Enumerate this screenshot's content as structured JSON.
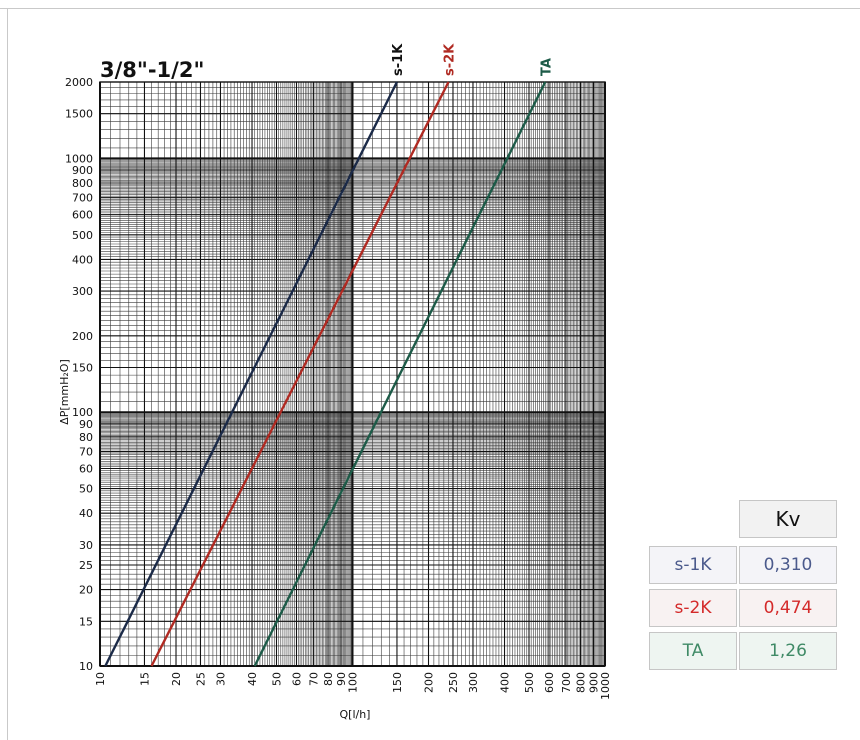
{
  "chart_data": {
    "type": "line",
    "title": "3/8\"-1/2\"",
    "xlabel": "Q[l/h]",
    "ylabel": "ΔP[mmH₂O]",
    "x_scale": "log",
    "y_scale": "log",
    "xlim": [
      10,
      1000
    ],
    "ylim": [
      10,
      2000
    ],
    "x_ticks": [
      10,
      15,
      20,
      25,
      30,
      40,
      50,
      60,
      70,
      80,
      90,
      100,
      150,
      200,
      250,
      300,
      400,
      500,
      600,
      700,
      800,
      900,
      1000
    ],
    "y_ticks": [
      10,
      15,
      20,
      25,
      30,
      40,
      50,
      60,
      70,
      80,
      90,
      100,
      150,
      200,
      300,
      400,
      500,
      600,
      700,
      800,
      900,
      1000,
      1500,
      2000
    ],
    "grid": true,
    "series": [
      {
        "name": "s-1K",
        "color": "#1b2a48",
        "x": [
          10.5,
          150
        ],
        "y": [
          10,
          2000
        ]
      },
      {
        "name": "s-2K",
        "color": "#b02a22",
        "x": [
          16,
          240
        ],
        "y": [
          10,
          2000
        ]
      },
      {
        "name": "TA",
        "color": "#1d5b48",
        "x": [
          41,
          580
        ],
        "y": [
          10,
          2000
        ]
      }
    ]
  },
  "kv_table": {
    "header": "Kv",
    "rows": [
      {
        "name": "s-1K",
        "value": "0,310",
        "text_color": "#4b5a8c",
        "bg": "#f4f4f8"
      },
      {
        "name": "s-2K",
        "value": "0,474",
        "text_color": "#d42a2a",
        "bg": "#f8f2f2"
      },
      {
        "name": "TA",
        "value": "1,26",
        "text_color": "#3f8a66",
        "bg": "#eef5f1"
      }
    ]
  }
}
